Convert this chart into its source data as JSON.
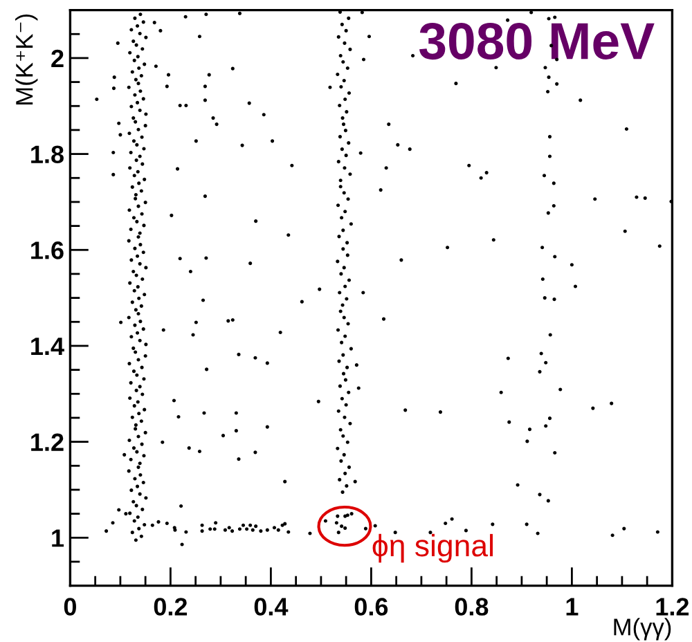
{
  "chart_data": {
    "type": "scatter",
    "title": "3080 MeV",
    "xlabel": "M(γγ)",
    "ylabel": "M(K⁺K⁻)",
    "xlim": [
      0,
      1.2
    ],
    "ylim": [
      0.9,
      2.1
    ],
    "xticks": [
      0,
      {
        "value": 0.05,
        "label": null
      },
      {
        "value": 0.1,
        "label": null
      },
      {
        "value": 0.15,
        "label": null
      },
      0.2,
      {
        "value": 0.25,
        "label": null
      },
      {
        "value": 0.3,
        "label": null
      },
      {
        "value": 0.35,
        "label": null
      },
      0.4,
      {
        "value": 0.45,
        "label": null
      },
      {
        "value": 0.5,
        "label": null
      },
      {
        "value": 0.55,
        "label": null
      },
      0.6,
      {
        "value": 0.65,
        "label": null
      },
      {
        "value": 0.7,
        "label": null
      },
      {
        "value": 0.75,
        "label": null
      },
      0.8,
      {
        "value": 0.85,
        "label": null
      },
      {
        "value": 0.9,
        "label": null
      },
      {
        "value": 0.95,
        "label": null
      },
      1,
      {
        "value": 1.05,
        "label": null
      },
      {
        "value": 1.1,
        "label": null
      },
      {
        "value": 1.15,
        "label": null
      },
      1.2
    ],
    "yticks": [
      {
        "value": 0.95,
        "label": null
      },
      1,
      {
        "value": 1.05,
        "label": null
      },
      {
        "value": 1.1,
        "label": null
      },
      {
        "value": 1.15,
        "label": null
      },
      1.2,
      {
        "value": 1.25,
        "label": null
      },
      {
        "value": 1.3,
        "label": null
      },
      {
        "value": 1.35,
        "label": null
      },
      1.4,
      {
        "value": 1.45,
        "label": null
      },
      {
        "value": 1.5,
        "label": null
      },
      {
        "value": 1.55,
        "label": null
      },
      1.6,
      {
        "value": 1.65,
        "label": null
      },
      {
        "value": 1.7,
        "label": null
      },
      {
        "value": 1.75,
        "label": null
      },
      1.8,
      {
        "value": 1.85,
        "label": null
      },
      {
        "value": 1.9,
        "label": null
      },
      {
        "value": 1.95,
        "label": null
      },
      2,
      {
        "value": 2.05,
        "label": null
      }
    ],
    "marker": "circle",
    "annotations": [
      {
        "text": "ϕη signal",
        "x": 0.547,
        "y": 1.024
      }
    ],
    "series": [
      {
        "color": "#000000",
        "x": [
          0.131,
          0.142,
          0.124,
          0.137,
          0.148,
          0.128,
          0.135,
          0.119,
          0.144,
          0.132,
          0.126,
          0.151,
          0.139,
          0.122,
          0.134,
          0.146,
          0.129,
          0.14,
          0.117,
          0.136,
          0.139,
          0.121,
          0.147,
          0.133,
          0.127,
          0.143,
          0.118,
          0.136,
          0.15,
          0.13,
          0.131,
          0.142,
          0.124,
          0.137,
          0.148,
          0.128,
          0.135,
          0.119,
          0.144,
          0.132,
          0.139,
          0.121,
          0.147,
          0.133,
          0.127,
          0.143,
          0.118,
          0.136,
          0.15,
          0.13,
          0.126,
          0.151,
          0.139,
          0.122,
          0.134,
          0.146,
          0.129,
          0.14,
          0.117,
          0.136,
          0.131,
          0.142,
          0.124,
          0.137,
          0.148,
          0.128,
          0.135,
          0.119,
          0.144,
          0.132,
          0.126,
          0.151,
          0.139,
          0.122,
          0.134,
          0.146,
          0.129,
          0.14,
          0.117,
          0.136,
          0.139,
          0.121,
          0.147,
          0.133,
          0.127,
          0.143,
          0.118,
          0.136,
          0.15,
          0.13,
          0.131,
          0.142,
          0.124,
          0.137,
          0.148,
          0.128,
          0.135,
          0.119,
          0.144,
          0.132,
          0.139,
          0.121,
          0.147,
          0.133,
          0.127,
          0.143,
          0.118,
          0.136,
          0.15,
          0.13,
          0.126,
          0.151,
          0.139,
          0.122,
          0.134,
          0.146,
          0.129,
          0.14,
          0.117,
          0.136,
          0.131,
          0.142,
          0.124,
          0.137,
          0.148,
          0.128,
          0.135,
          0.119,
          0.144,
          0.132,
          0.126,
          0.151,
          0.139,
          0.122,
          0.134,
          0.146,
          0.129,
          0.14
        ],
        "values": [
          0.995,
          1.003,
          1.011,
          1.019,
          1.027,
          1.035,
          1.043,
          1.051,
          1.059,
          1.067,
          1.075,
          1.083,
          1.091,
          1.099,
          1.107,
          1.115,
          1.123,
          1.131,
          1.139,
          1.147,
          1.155,
          1.163,
          1.171,
          1.179,
          1.187,
          1.195,
          1.203,
          1.211,
          1.219,
          1.227,
          1.235,
          1.243,
          1.251,
          1.259,
          1.267,
          1.275,
          1.283,
          1.291,
          1.299,
          1.307,
          1.315,
          1.323,
          1.331,
          1.339,
          1.347,
          1.355,
          1.363,
          1.371,
          1.379,
          1.387,
          1.395,
          1.403,
          1.411,
          1.419,
          1.427,
          1.435,
          1.443,
          1.451,
          1.459,
          1.467,
          1.475,
          1.483,
          1.491,
          1.499,
          1.507,
          1.515,
          1.523,
          1.531,
          1.539,
          1.547,
          1.555,
          1.563,
          1.571,
          1.579,
          1.587,
          1.595,
          1.603,
          1.611,
          1.619,
          1.627,
          1.635,
          1.643,
          1.651,
          1.659,
          1.667,
          1.675,
          1.683,
          1.691,
          1.699,
          1.707,
          1.715,
          1.723,
          1.731,
          1.739,
          1.747,
          1.755,
          1.763,
          1.771,
          1.779,
          1.787,
          1.795,
          1.803,
          1.811,
          1.819,
          1.827,
          1.835,
          1.843,
          1.851,
          1.859,
          1.867,
          1.875,
          1.883,
          1.891,
          1.899,
          1.907,
          1.915,
          1.923,
          1.931,
          1.939,
          1.947,
          1.955,
          1.963,
          1.971,
          1.979,
          1.987,
          1.995,
          2.003,
          2.011,
          2.019,
          2.027,
          2.035,
          2.043,
          2.051,
          2.059,
          2.067,
          2.075,
          2.083,
          2.091
        ]
      },
      {
        "color": "#000000",
        "x": [
          0.543,
          0.551,
          0.537,
          0.548,
          0.556,
          0.54,
          0.546,
          0.533,
          0.553,
          0.544,
          0.539,
          0.558,
          0.547,
          0.535,
          0.55,
          0.542,
          0.555,
          0.538,
          0.549,
          0.545,
          0.552,
          0.536,
          0.544,
          0.56,
          0.541,
          0.548,
          0.534,
          0.554,
          0.546,
          0.539,
          0.543,
          0.551,
          0.537,
          0.548,
          0.556,
          0.54,
          0.546,
          0.533,
          0.553,
          0.544,
          0.552,
          0.536,
          0.544,
          0.56,
          0.541,
          0.548,
          0.534,
          0.554,
          0.546,
          0.539,
          0.539,
          0.558,
          0.547,
          0.535,
          0.55,
          0.542,
          0.555,
          0.538,
          0.549,
          0.545,
          0.543,
          0.551,
          0.537,
          0.548,
          0.556,
          0.54,
          0.546,
          0.533,
          0.553,
          0.544,
          0.539,
          0.558,
          0.547,
          0.535,
          0.55,
          0.542,
          0.555,
          0.538
        ],
        "values": [
          1.095,
          1.108,
          1.121,
          1.134,
          1.147,
          1.16,
          1.173,
          1.186,
          1.199,
          1.212,
          1.225,
          1.238,
          1.251,
          1.264,
          1.277,
          1.29,
          1.303,
          1.316,
          1.329,
          1.342,
          1.355,
          1.368,
          1.381,
          1.394,
          1.407,
          1.42,
          1.433,
          1.446,
          1.459,
          1.472,
          1.485,
          1.498,
          1.511,
          1.524,
          1.537,
          1.55,
          1.563,
          1.576,
          1.589,
          1.602,
          1.615,
          1.628,
          1.641,
          1.654,
          1.667,
          1.68,
          1.693,
          1.706,
          1.719,
          1.732,
          1.745,
          1.758,
          1.771,
          1.784,
          1.797,
          1.81,
          1.823,
          1.836,
          1.849,
          1.862,
          1.875,
          1.888,
          1.901,
          1.914,
          1.927,
          1.94,
          1.953,
          1.966,
          1.979,
          1.992,
          2.005,
          2.018,
          2.031,
          2.044,
          2.057,
          2.07,
          2.083,
          2.096
        ]
      },
      {
        "color": "#000000",
        "x": [
          0.072,
          0.085,
          0.097,
          0.111,
          0.164,
          0.176,
          0.193,
          0.208,
          0.209,
          0.221,
          0.223,
          0.231,
          0.263,
          0.263,
          0.279,
          0.29,
          0.288,
          0.309,
          0.317,
          0.323,
          0.338,
          0.345,
          0.352,
          0.359,
          0.364,
          0.37,
          0.38,
          0.393,
          0.407,
          0.415,
          0.423,
          0.428,
          0.435,
          0.478,
          0.509,
          0.533,
          0.548,
          0.553,
          0.561,
          0.531,
          0.541,
          0.548,
          0.535,
          0.589,
          0.608,
          0.648,
          0.718,
          0.748,
          0.761,
          0.789,
          0.842,
          0.91,
          0.932,
          1.081,
          1.104,
          1.171
        ],
        "values": [
          1.014,
          1.031,
          1.058,
          1.05,
          1.026,
          1.033,
          1.03,
          1.021,
          1.016,
          1.066,
          0.986,
          1.012,
          1.026,
          1.014,
          1.018,
          1.031,
          1.018,
          1.016,
          1.021,
          1.014,
          1.018,
          1.026,
          1.018,
          1.026,
          1.016,
          1.024,
          1.014,
          1.016,
          1.021,
          1.016,
          1.026,
          1.029,
          1.012,
          1.009,
          1.035,
          1.045,
          1.045,
          1.047,
          1.05,
          1.031,
          1.024,
          1.02,
          1.011,
          1.019,
          1.025,
          1.011,
          1.011,
          1.03,
          1.039,
          1.015,
          1.028,
          1.028,
          1.009,
          1.005,
          1.019,
          1.012
        ]
      },
      {
        "color": "#000000",
        "x": [
          0.168,
          0.18,
          0.23,
          0.271,
          0.258,
          0.095,
          0.171,
          0.196,
          0.277,
          0.324,
          0.088,
          0.087,
          0.193,
          0.269,
          0.053,
          0.269,
          0.219,
          0.231,
          0.357,
          0.285,
          0.292,
          0.386,
          0.097,
          0.1,
          0.251,
          0.403,
          0.343,
          0.086,
          0.086,
          0.214,
          0.442,
          0.269,
          0.202,
          0.37,
          0.435,
          0.219,
          0.271,
          0.359,
          0.24,
          0.497,
          0.265,
          0.462,
          0.101,
          0.186,
          0.251,
          0.315,
          0.324,
          0.338,
          0.582,
          0.596,
          0.585,
          0.683,
          0.769,
          0.849,
          0.872,
          0.919,
          0.579,
          0.635,
          0.653,
          0.677,
          0.63,
          0.619,
          0.795,
          0.83,
          0.819,
          1.017,
          1.109,
          1.046,
          1.129,
          1.146,
          1.198,
          1.106,
          1.175,
          0.752,
          0.844,
          0.66,
          0.625,
          0.584,
          0.518,
          0.966,
          0.954,
          0.959,
          0.97,
          0.947,
          0.954,
          0.97,
          0.952,
          0.956,
          0.956,
          0.945,
          0.964,
          0.964,
          0.953,
          0.941,
          0.966,
          1.0,
          0.942,
          1.007,
          0.946,
          0.965,
          0.957,
          0.873,
          0.939,
          0.948,
          0.936,
          0.859,
          0.977,
          0.668,
          0.738,
          1.042,
          1.079,
          0.875,
          0.956,
          0.948,
          0.916,
          0.911,
          0.966,
          0.892,
          0.936,
          0.953,
          0.571,
          0.575,
          0.568,
          0.245,
          0.419,
          0.336,
          0.369,
          0.393,
          0.272,
          0.207,
          0.216,
          0.267,
          0.331,
          0.305,
          0.331,
          0.393,
          0.184,
          0.237,
          0.258,
          0.336,
          0.369,
          0.428,
          0.495,
          0.108
        ],
        "values": [
          2.074,
          2.057,
          2.086,
          2.091,
          2.045,
          2.031,
          1.983,
          1.965,
          1.965,
          1.978,
          1.96,
          1.937,
          1.941,
          1.941,
          1.914,
          1.912,
          1.901,
          1.901,
          1.906,
          1.875,
          1.862,
          1.882,
          1.864,
          1.84,
          1.827,
          1.827,
          1.818,
          1.803,
          1.757,
          1.769,
          1.776,
          1.712,
          1.672,
          1.66,
          1.631,
          1.582,
          1.583,
          1.572,
          1.555,
          1.518,
          1.495,
          1.492,
          1.449,
          1.433,
          1.449,
          1.452,
          1.454,
          2.093,
          2.095,
          2.045,
          1.997,
          2.005,
          1.947,
          1.98,
          2.079,
          2.095,
          1.802,
          1.862,
          1.819,
          1.81,
          1.771,
          1.725,
          1.776,
          1.761,
          1.75,
          1.912,
          1.852,
          1.706,
          1.71,
          1.708,
          1.701,
          1.639,
          1.608,
          1.605,
          1.621,
          1.579,
          1.456,
          1.511,
          1.939,
          2.085,
          2.082,
          2.026,
          1.997,
          1.98,
          1.96,
          1.946,
          1.93,
          1.836,
          1.795,
          1.755,
          1.739,
          1.692,
          1.677,
          1.605,
          1.586,
          1.569,
          1.539,
          1.524,
          1.5,
          1.497,
          1.423,
          1.374,
          1.384,
          1.365,
          1.346,
          1.303,
          1.309,
          1.266,
          1.262,
          1.27,
          1.28,
          1.241,
          1.249,
          1.233,
          1.226,
          1.201,
          1.177,
          1.11,
          1.09,
          1.077,
          1.36,
          1.312,
          1.117,
          1.423,
          1.428,
          1.382,
          1.375,
          1.364,
          1.351,
          1.286,
          1.252,
          1.26,
          1.26,
          1.213,
          1.223,
          1.231,
          1.199,
          1.187,
          1.18,
          1.164,
          1.178,
          1.117,
          1.284,
          1.173
        ]
      }
    ]
  }
}
